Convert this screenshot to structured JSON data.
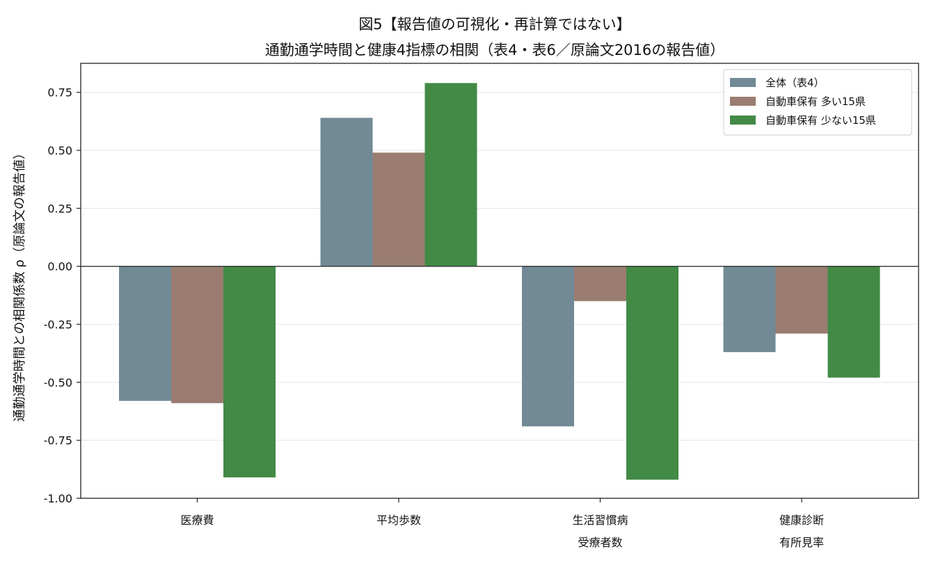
{
  "chart_data": {
    "type": "bar",
    "title": [
      "図5【報告値の可視化・再計算ではない】",
      "通勤通学時間と健康4指標の相関（表4・表6／原論文2016の報告値）"
    ],
    "ylabel": "通勤通学時間との相関係数 ρ（原論文の報告値）",
    "xlabel": "",
    "categories": [
      [
        "医療費"
      ],
      [
        "平均歩数"
      ],
      [
        "生活習慣病",
        "受療者数"
      ],
      [
        "健康診断",
        "有所見率"
      ]
    ],
    "series": [
      {
        "name": "全体（表4）",
        "color": "#728a96",
        "values": [
          -0.58,
          0.64,
          -0.69,
          -0.37
        ]
      },
      {
        "name": "自動車保有 多い15県",
        "color": "#9a7d70",
        "values": [
          -0.59,
          0.49,
          -0.15,
          -0.29
        ]
      },
      {
        "name": "自動車保有 少ない15県",
        "color": "#428a46",
        "values": [
          -0.91,
          0.79,
          -0.92,
          -0.48
        ]
      }
    ],
    "ylim": [
      -1.0,
      0.875
    ],
    "yticks": [
      -1.0,
      -0.75,
      -0.5,
      -0.25,
      0.0,
      0.25,
      0.5,
      0.75
    ],
    "ytick_labels": [
      "-1.00",
      "-0.75",
      "-0.50",
      "-0.25",
      "0.00",
      "0.25",
      "0.50",
      "0.75"
    ],
    "grid": true,
    "zero_line": true,
    "legend_position": "top-right"
  }
}
